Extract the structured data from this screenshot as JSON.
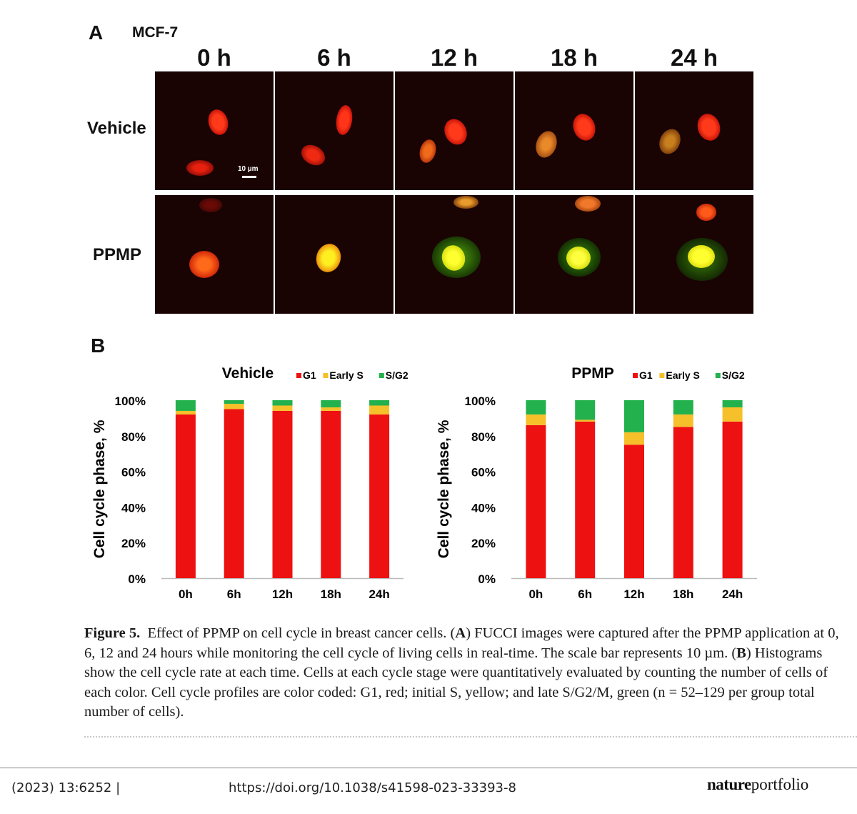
{
  "figure_a": {
    "panel_label": "A",
    "cell_line": "MCF-7",
    "time_labels": [
      "0 h",
      "6 h",
      "12 h",
      "18 h",
      "24 h"
    ],
    "row_labels": [
      "Vehicle",
      "PPMP"
    ],
    "scale_bar_label": "10 µm"
  },
  "figure_b": {
    "panel_label": "B"
  },
  "chart_data": [
    {
      "type": "bar",
      "stacked": true,
      "title": "Vehicle",
      "categories": [
        "0h",
        "6h",
        "12h",
        "18h",
        "24h"
      ],
      "ylabel": "Cell cycle phase, %",
      "ylim": [
        0,
        100
      ],
      "yticks": [
        "0%",
        "20%",
        "40%",
        "60%",
        "80%",
        "100%"
      ],
      "legend_position": "top-right",
      "series": [
        {
          "name": "G1",
          "color": "#ee1111",
          "values": [
            92,
            95,
            94,
            94,
            92
          ]
        },
        {
          "name": "Early S",
          "color": "#f5c02a",
          "values": [
            2,
            3,
            3,
            2,
            5
          ]
        },
        {
          "name": "S/G2",
          "color": "#22b14c",
          "values": [
            6,
            2,
            3,
            4,
            3
          ]
        }
      ]
    },
    {
      "type": "bar",
      "stacked": true,
      "title": "PPMP",
      "categories": [
        "0h",
        "6h",
        "12h",
        "18h",
        "24h"
      ],
      "ylabel": "Cell cycle phase, %",
      "ylim": [
        0,
        100
      ],
      "yticks": [
        "0%",
        "20%",
        "40%",
        "60%",
        "80%",
        "100%"
      ],
      "legend_position": "top-right",
      "series": [
        {
          "name": "G1",
          "color": "#ee1111",
          "values": [
            86,
            88,
            75,
            85,
            88
          ]
        },
        {
          "name": "Early S",
          "color": "#f5c02a",
          "values": [
            6,
            1,
            7,
            7,
            8
          ]
        },
        {
          "name": "S/G2",
          "color": "#22b14c",
          "values": [
            8,
            11,
            18,
            8,
            4
          ]
        }
      ]
    }
  ],
  "caption": {
    "label": "Figure 5.",
    "text_1": "Effect of PPMP on cell cycle in breast cancer cells. (",
    "ref_a": "A",
    "text_2": ") FUCCI images were captured after the PPMP application at 0, 6, 12 and 24 hours while monitoring the cell cycle of living cells in real-time. The scale bar represents 10 µm. (",
    "ref_b": "B",
    "text_3": ") Histograms show the cell cycle rate at each time. Cells at each cycle stage were quantitatively evaluated by counting the number of cells of each color. Cell cycle profiles are color coded: G1, red; initial S, yellow; and late S/G2/M, green (n = 52–129 per group total number of cells)."
  },
  "footer": {
    "citation": "(2023) 13:6252 |",
    "doi": "https://doi.org/10.1038/s41598-023-33393-8",
    "logo_bold": "nature",
    "logo_light": "portfolio"
  }
}
